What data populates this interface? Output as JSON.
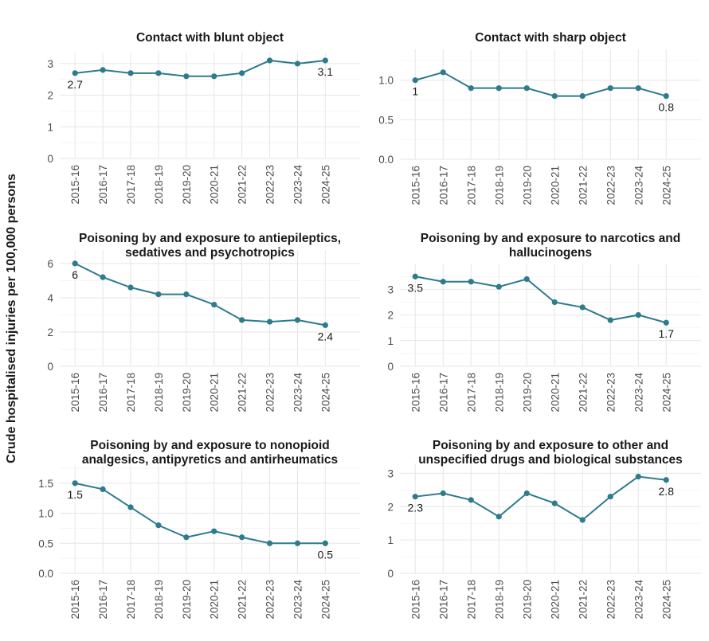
{
  "figure": {
    "ylabel": "Crude hospitalised injuries per 100,000 persons",
    "line_color": "#2e7b8c"
  },
  "chart_data": [
    {
      "type": "line",
      "title": "Contact with blunt object",
      "categories": [
        "2015-16",
        "2016-17",
        "2017-18",
        "2018-19",
        "2019-20",
        "2020-21",
        "2021-22",
        "2022-23",
        "2023-24",
        "2024-25"
      ],
      "values": [
        2.7,
        2.8,
        2.7,
        2.7,
        2.6,
        2.6,
        2.7,
        3.1,
        3.0,
        3.1
      ],
      "ylim": [
        0,
        3.25
      ],
      "yticks": [
        0,
        1,
        2,
        3
      ],
      "ytick_labels": [
        "0",
        "1",
        "2",
        "3"
      ],
      "end_labels": [
        "2.7",
        "3.1"
      ]
    },
    {
      "type": "line",
      "title": "Contact with sharp object",
      "categories": [
        "2015-16",
        "2016-17",
        "2017-18",
        "2018-19",
        "2019-20",
        "2020-21",
        "2021-22",
        "2022-23",
        "2023-24",
        "2024-25"
      ],
      "values": [
        1.0,
        1.1,
        0.9,
        0.9,
        0.9,
        0.8,
        0.8,
        0.9,
        0.9,
        0.8
      ],
      "ylim": [
        0,
        1.35
      ],
      "yticks": [
        0,
        0.5,
        1.0
      ],
      "ytick_labels": [
        "0.0",
        "0.5",
        "1.0"
      ],
      "end_labels": [
        "1",
        "0.8"
      ]
    },
    {
      "type": "line",
      "title": "Poisoning by and exposure to antiepileptics, sedatives and psychotropics",
      "title_lines": [
        "Poisoning by and exposure to antiepileptics,",
        "sedatives and psychotropics"
      ],
      "categories": [
        "2015-16",
        "2016-17",
        "2017-18",
        "2018-19",
        "2019-20",
        "2020-21",
        "2021-22",
        "2022-23",
        "2023-24",
        "2024-25"
      ],
      "values": [
        6.0,
        5.2,
        4.6,
        4.2,
        4.2,
        3.6,
        2.7,
        2.6,
        2.7,
        2.4
      ],
      "ylim": [
        0,
        6.6
      ],
      "yticks": [
        0,
        2,
        4,
        6
      ],
      "ytick_labels": [
        "0",
        "2",
        "4",
        "6"
      ],
      "end_labels": [
        "6",
        "2.4"
      ]
    },
    {
      "type": "line",
      "title": "Poisoning by and exposure to narcotics and hallucinogens",
      "title_lines": [
        "Poisoning by and exposure to narcotics and",
        "hallucinogens"
      ],
      "categories": [
        "2015-16",
        "2016-17",
        "2017-18",
        "2018-19",
        "2019-20",
        "2020-21",
        "2021-22",
        "2022-23",
        "2023-24",
        "2024-25"
      ],
      "values": [
        3.5,
        3.3,
        3.3,
        3.1,
        3.4,
        2.5,
        2.3,
        1.8,
        2.0,
        1.7
      ],
      "ylim": [
        0,
        3.85
      ],
      "yticks": [
        0,
        1,
        2,
        3
      ],
      "ytick_labels": [
        "0",
        "1",
        "2",
        "3"
      ],
      "end_labels": [
        "3.5",
        "1.7"
      ]
    },
    {
      "type": "line",
      "title": "Poisoning by and exposure to nonopioid analgesics, antipyretics and antirheumatics",
      "title_lines": [
        "Poisoning by and exposure to nonopioid",
        "analgesics, antipyretics and antirheumatics"
      ],
      "categories": [
        "2015-16",
        "2016-17",
        "2017-18",
        "2018-19",
        "2019-20",
        "2020-21",
        "2021-22",
        "2022-23",
        "2023-24",
        "2024-25"
      ],
      "values": [
        1.5,
        1.4,
        1.1,
        0.8,
        0.6,
        0.7,
        0.6,
        0.5,
        0.5,
        0.5
      ],
      "ylim": [
        0,
        1.75
      ],
      "yticks": [
        0,
        0.5,
        1.0,
        1.5
      ],
      "ytick_labels": [
        "0.0",
        "0.5",
        "1.0",
        "1.5"
      ],
      "end_labels": [
        "1.5",
        "0.5"
      ]
    },
    {
      "type": "line",
      "title": "Poisoning by and exposure to other and unspecified drugs and biological substances",
      "title_lines": [
        "Poisoning by and exposure to other and",
        "unspecified drugs and biological substances"
      ],
      "categories": [
        "2015-16",
        "2016-17",
        "2017-18",
        "2018-19",
        "2019-20",
        "2020-21",
        "2021-22",
        "2022-23",
        "2023-24",
        "2024-25"
      ],
      "values": [
        2.3,
        2.4,
        2.2,
        1.7,
        2.4,
        2.1,
        1.6,
        2.3,
        2.9,
        2.8
      ],
      "ylim": [
        0,
        3.2
      ],
      "yticks": [
        0,
        1,
        2,
        3
      ],
      "ytick_labels": [
        "0",
        "1",
        "2",
        "3"
      ],
      "end_labels": [
        "2.3",
        "2.8"
      ]
    }
  ]
}
